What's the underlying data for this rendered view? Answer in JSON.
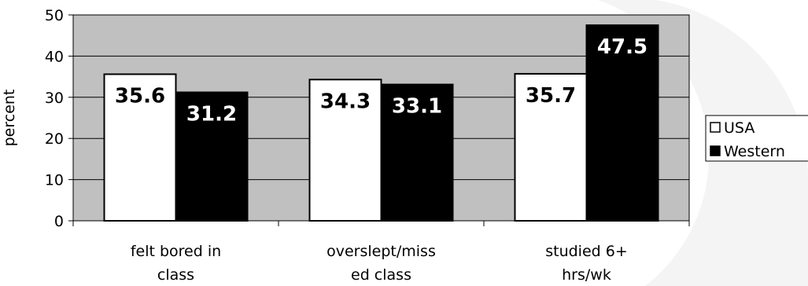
{
  "chart_data": {
    "type": "bar",
    "title": "",
    "xlabel": "",
    "ylabel": "percent",
    "ylim": [
      0,
      50
    ],
    "yticks": [
      0,
      10,
      20,
      30,
      40,
      50
    ],
    "grid": true,
    "legend_position": "right",
    "categories": [
      [
        "felt bored in",
        "class"
      ],
      [
        "overslept/miss",
        "ed class"
      ],
      [
        "studied 6+",
        "hrs/wk"
      ]
    ],
    "series": [
      {
        "name": "USA",
        "values": [
          35.6,
          34.3,
          35.7
        ],
        "color": "#ffffff",
        "label_color": "#000000"
      },
      {
        "name": "Western",
        "values": [
          31.2,
          33.1,
          47.5
        ],
        "color": "#000000",
        "label_color": "#ffffff"
      }
    ],
    "data_labels": [
      [
        "35.6",
        "34.3",
        "35.7"
      ],
      [
        "31.2",
        "33.1",
        "47.5"
      ]
    ],
    "plot_background": "#c0c0c0"
  }
}
